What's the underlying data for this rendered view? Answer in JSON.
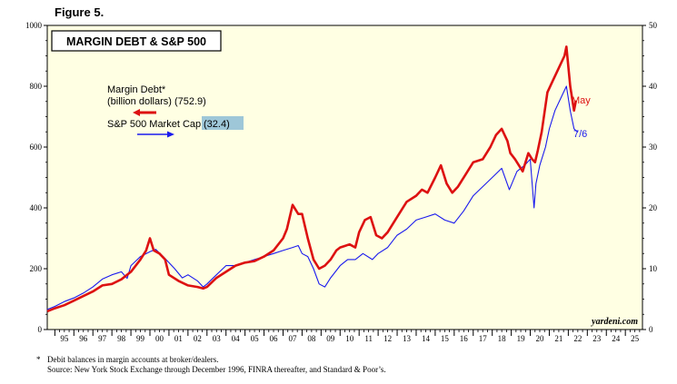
{
  "figure_label": "Figure 5.",
  "footnote": {
    "marker": "*",
    "line1": "Debit balances in margin accounts at broker/dealers.",
    "line2": "Source: New York Stock Exchange through December 1996, FINRA thereafter, and Standard & Poor’s."
  },
  "chart_data": {
    "type": "line",
    "title": "MARGIN DEBT & S&P 500",
    "watermark": "yardeni.com",
    "x_range": [
      1994.6,
      2025.9
    ],
    "left_axis": {
      "range": [
        0,
        1000
      ],
      "ticks": [
        0,
        200,
        400,
        600,
        800,
        1000
      ]
    },
    "right_axis": {
      "range": [
        0,
        50
      ],
      "ticks": [
        0,
        10,
        20,
        30,
        40,
        50
      ]
    },
    "x_tick_labels": [
      "95",
      "96",
      "97",
      "98",
      "99",
      "00",
      "01",
      "02",
      "03",
      "04",
      "05",
      "06",
      "07",
      "08",
      "09",
      "10",
      "11",
      "12",
      "13",
      "14",
      "15",
      "16",
      "17",
      "18",
      "19",
      "20",
      "21",
      "22",
      "23",
      "24",
      "25"
    ],
    "x_tick_years": [
      1995,
      1996,
      1997,
      1998,
      1999,
      2000,
      2001,
      2002,
      2003,
      2004,
      2005,
      2006,
      2007,
      2008,
      2009,
      2010,
      2011,
      2012,
      2013,
      2014,
      2015,
      2016,
      2017,
      2018,
      2019,
      2020,
      2021,
      2022,
      2023,
      2024,
      2025
    ],
    "legend": [
      {
        "line1": "Margin Debt*",
        "line2": "(billion dollars) (752.9)",
        "color": "#dd1111",
        "axis": "left"
      },
      {
        "line1": "S&P 500 Market Cap",
        "value": "(32.4)",
        "color": "#1a1aee",
        "axis": "right"
      }
    ],
    "series": [
      {
        "name": "Margin Debt",
        "axis": "left",
        "color": "#dd1111",
        "end_label": "May",
        "x": [
          1994.6,
          1995,
          1995.5,
          1996,
          1996.5,
          1997,
          1997.5,
          1998,
          1998.5,
          1999,
          1999.5,
          1999.8,
          2000,
          2000.2,
          2000.5,
          2000.8,
          2001,
          2001.5,
          2002,
          2002.5,
          2002.8,
          2003,
          2003.5,
          2004,
          2004.5,
          2005,
          2005.5,
          2006,
          2006.5,
          2007,
          2007.2,
          2007.5,
          2007.8,
          2008,
          2008.3,
          2008.6,
          2008.9,
          2009.2,
          2009.5,
          2009.8,
          2010,
          2010.5,
          2010.8,
          2011,
          2011.3,
          2011.6,
          2011.9,
          2012.2,
          2012.5,
          2013,
          2013.5,
          2014,
          2014.3,
          2014.6,
          2015,
          2015.3,
          2015.6,
          2015.9,
          2016.2,
          2016.6,
          2017,
          2017.5,
          2017.9,
          2018.2,
          2018.5,
          2018.8,
          2018.95,
          2019.2,
          2019.6,
          2019.9,
          2020.1,
          2020.25,
          2020.4,
          2020.6,
          2020.9,
          2021.2,
          2021.5,
          2021.8,
          2021.9,
          2022.1,
          2022.3,
          2022.4
        ],
        "values": [
          60,
          70,
          80,
          95,
          110,
          125,
          145,
          150,
          165,
          190,
          230,
          260,
          300,
          260,
          250,
          230,
          180,
          160,
          145,
          140,
          135,
          140,
          170,
          190,
          210,
          220,
          225,
          240,
          260,
          300,
          330,
          410,
          380,
          380,
          300,
          230,
          200,
          210,
          230,
          260,
          270,
          280,
          270,
          320,
          360,
          370,
          310,
          300,
          320,
          370,
          420,
          440,
          460,
          450,
          500,
          540,
          480,
          450,
          470,
          510,
          550,
          560,
          600,
          640,
          660,
          620,
          580,
          560,
          520,
          580,
          560,
          550,
          590,
          650,
          780,
          820,
          860,
          900,
          930,
          800,
          720,
          752.9
        ]
      },
      {
        "name": "S&P 500 Market Cap",
        "axis": "right",
        "color": "#1a1aee",
        "end_label": "7/6",
        "x": [
          1994.6,
          1995,
          1995.5,
          1996,
          1996.5,
          1997,
          1997.5,
          1998,
          1998.5,
          1998.8,
          1999,
          1999.5,
          2000,
          2000.3,
          2000.7,
          2001,
          2001.3,
          2001.7,
          2002,
          2002.5,
          2002.8,
          2003,
          2003.5,
          2004,
          2004.5,
          2005,
          2005.5,
          2006,
          2006.5,
          2007,
          2007.5,
          2007.8,
          2008,
          2008.3,
          2008.6,
          2008.9,
          2009.2,
          2009.5,
          2010,
          2010.4,
          2010.8,
          2011.2,
          2011.7,
          2012,
          2012.5,
          2013,
          2013.5,
          2014,
          2014.5,
          2015,
          2015.5,
          2016,
          2016.5,
          2017,
          2017.5,
          2018,
          2018.5,
          2018.9,
          2019.3,
          2019.7,
          2020,
          2020.2,
          2020.3,
          2020.5,
          2020.8,
          2021,
          2021.3,
          2021.6,
          2021.9,
          2022.1,
          2022.3,
          2022.5
        ],
        "values": [
          3.3,
          3.8,
          4.6,
          5.2,
          6,
          7,
          8.3,
          9,
          9.5,
          8.4,
          10.5,
          12,
          12.8,
          13.2,
          12,
          11,
          10,
          8.5,
          9,
          8,
          7,
          7.5,
          9,
          10.5,
          10.5,
          11,
          11.5,
          12,
          12.5,
          13,
          13.5,
          13.8,
          12.5,
          12,
          10,
          7.5,
          7,
          8.5,
          10.5,
          11.5,
          11.5,
          12.5,
          11.5,
          12.5,
          13.5,
          15.5,
          16.5,
          18,
          18.5,
          19,
          18,
          17.5,
          19.5,
          22,
          23.5,
          25,
          26.5,
          23,
          26,
          27,
          28,
          20,
          24,
          27,
          30,
          33,
          36,
          38,
          40,
          36,
          33,
          32.4
        ]
      }
    ]
  }
}
